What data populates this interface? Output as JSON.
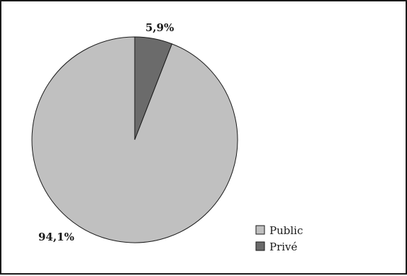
{
  "chart_data": {
    "type": "pie",
    "slices": [
      {
        "label": "Public",
        "value": 94.1,
        "value_label": "94,1%",
        "color": "#c0c0c0"
      },
      {
        "label": "Privé",
        "value": 5.9,
        "value_label": "5,9%",
        "color": "#6b6b6b"
      }
    ],
    "legend": {
      "position": "bottom-right"
    },
    "title": ""
  }
}
